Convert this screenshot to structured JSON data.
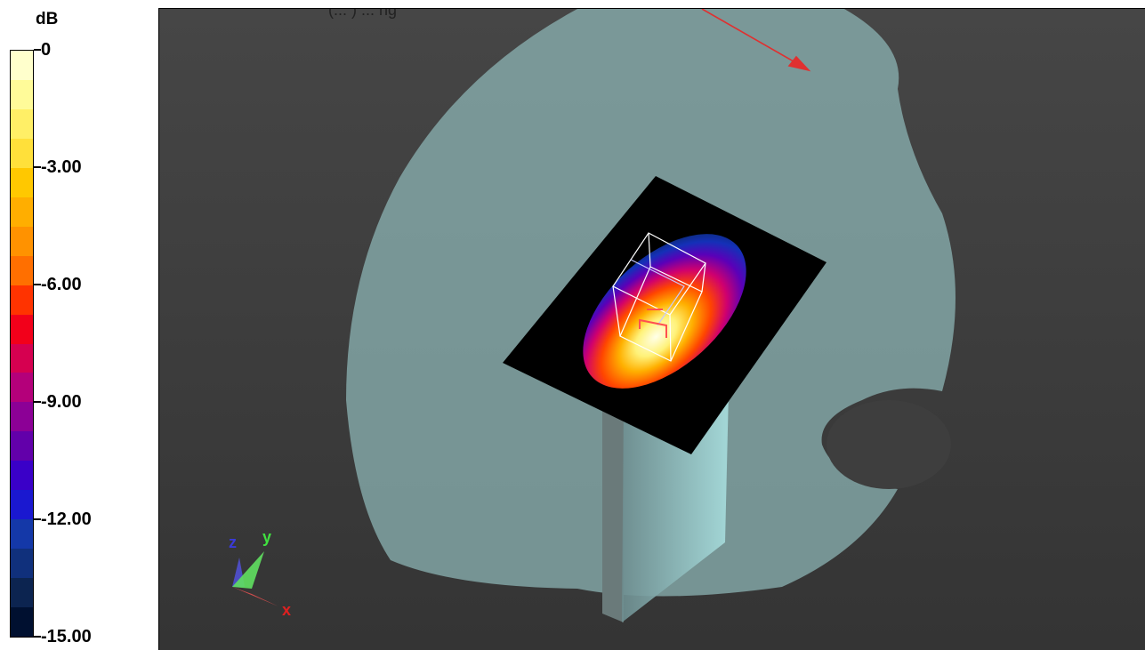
{
  "caption": "(... ) ... ng",
  "legend": {
    "unit": "dB",
    "ticks": [
      "0",
      "-3.00",
      "-6.00",
      "-9.00",
      "-12.00",
      "-15.00"
    ],
    "bands": [
      "#ffffcc",
      "#fffb99",
      "#ffef66",
      "#ffe03a",
      "#ffc800",
      "#ffae00",
      "#ff9200",
      "#ff6f00",
      "#ff3300",
      "#f2001a",
      "#d60050",
      "#b4007a",
      "#8c0096",
      "#6200aa",
      "#3a00c8",
      "#1a18d0",
      "#1438a8",
      "#10307c",
      "#0c2450",
      "#001030"
    ],
    "range": [
      -15,
      0
    ]
  },
  "viewport": {
    "background": "#3c3c3c",
    "phantom_color": "#8fb8b8",
    "plate_color": "#000000"
  },
  "axes": {
    "x": "x",
    "y": "y",
    "z": "z"
  }
}
